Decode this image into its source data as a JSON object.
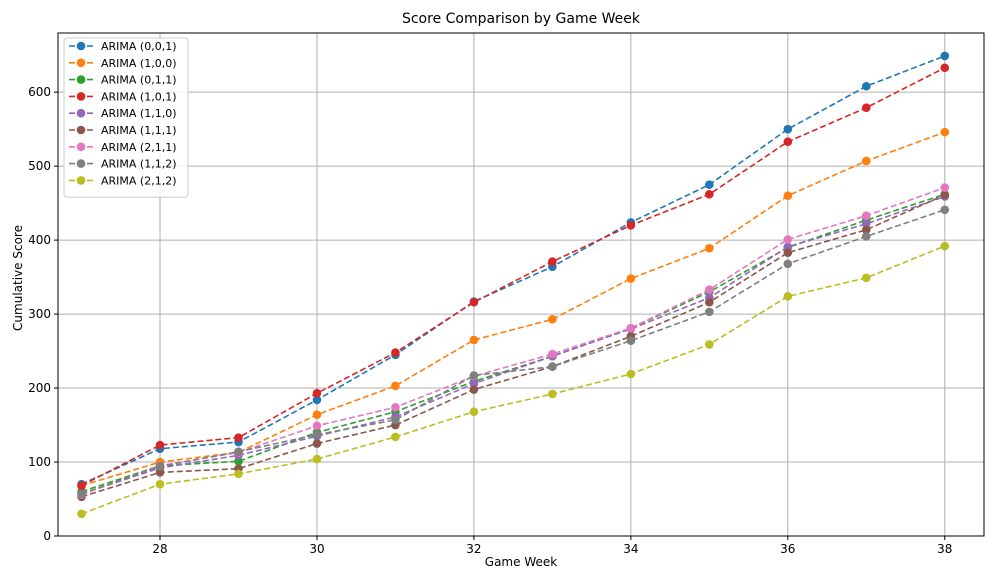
{
  "chart_data": {
    "type": "line",
    "title": "Score Comparison by Game Week",
    "xlabel": "Game Week",
    "ylabel": "Cumulative Score",
    "xlim": [
      26.7,
      38.5
    ],
    "ylim": [
      0,
      680
    ],
    "xticks": [
      28,
      30,
      32,
      34,
      36,
      38
    ],
    "yticks": [
      0,
      100,
      200,
      300,
      400,
      500,
      600
    ],
    "grid": true,
    "legend_position": "top-left",
    "line_style": "dashed",
    "marker": "circle",
    "x": [
      27,
      28,
      29,
      30,
      31,
      32,
      33,
      34,
      35,
      36,
      37,
      38
    ],
    "series": [
      {
        "name": "ARIMA (0,0,1)",
        "color": "#1f77b4",
        "values": [
          70,
          118,
          127,
          184,
          245,
          317,
          364,
          424,
          475,
          550,
          608,
          649
        ]
      },
      {
        "name": "ARIMA (1,0,0)",
        "color": "#ff7f0e",
        "values": [
          68,
          100,
          113,
          164,
          203,
          265,
          293,
          348,
          389,
          460,
          507,
          546
        ]
      },
      {
        "name": "ARIMA (0,1,1)",
        "color": "#2ca02c",
        "values": [
          60,
          95,
          101,
          140,
          168,
          209,
          243,
          281,
          330,
          390,
          427,
          462
        ]
      },
      {
        "name": "ARIMA (1,0,1)",
        "color": "#d62728",
        "values": [
          68,
          123,
          133,
          193,
          248,
          316,
          371,
          420,
          462,
          533,
          579,
          633
        ]
      },
      {
        "name": "ARIMA (1,1,0)",
        "color": "#9467bd",
        "values": [
          57,
          92,
          109,
          135,
          161,
          206,
          243,
          280,
          322,
          391,
          422,
          459
        ]
      },
      {
        "name": "ARIMA (1,1,1)",
        "color": "#8c564b",
        "values": [
          53,
          86,
          91,
          125,
          150,
          198,
          229,
          270,
          316,
          383,
          414,
          461
        ]
      },
      {
        "name": "ARIMA (2,1,1)",
        "color": "#e377c2",
        "values": [
          56,
          95,
          113,
          149,
          174,
          216,
          246,
          281,
          333,
          401,
          433,
          471
        ]
      },
      {
        "name": "ARIMA (1,1,2)",
        "color": "#7f7f7f",
        "values": [
          57,
          94,
          114,
          137,
          157,
          217,
          229,
          264,
          303,
          368,
          405,
          441
        ]
      },
      {
        "name": "ARIMA (2,1,2)",
        "color": "#bcbd22",
        "values": [
          30,
          70,
          84,
          104,
          134,
          168,
          192,
          219,
          259,
          324,
          349,
          392
        ]
      }
    ]
  }
}
